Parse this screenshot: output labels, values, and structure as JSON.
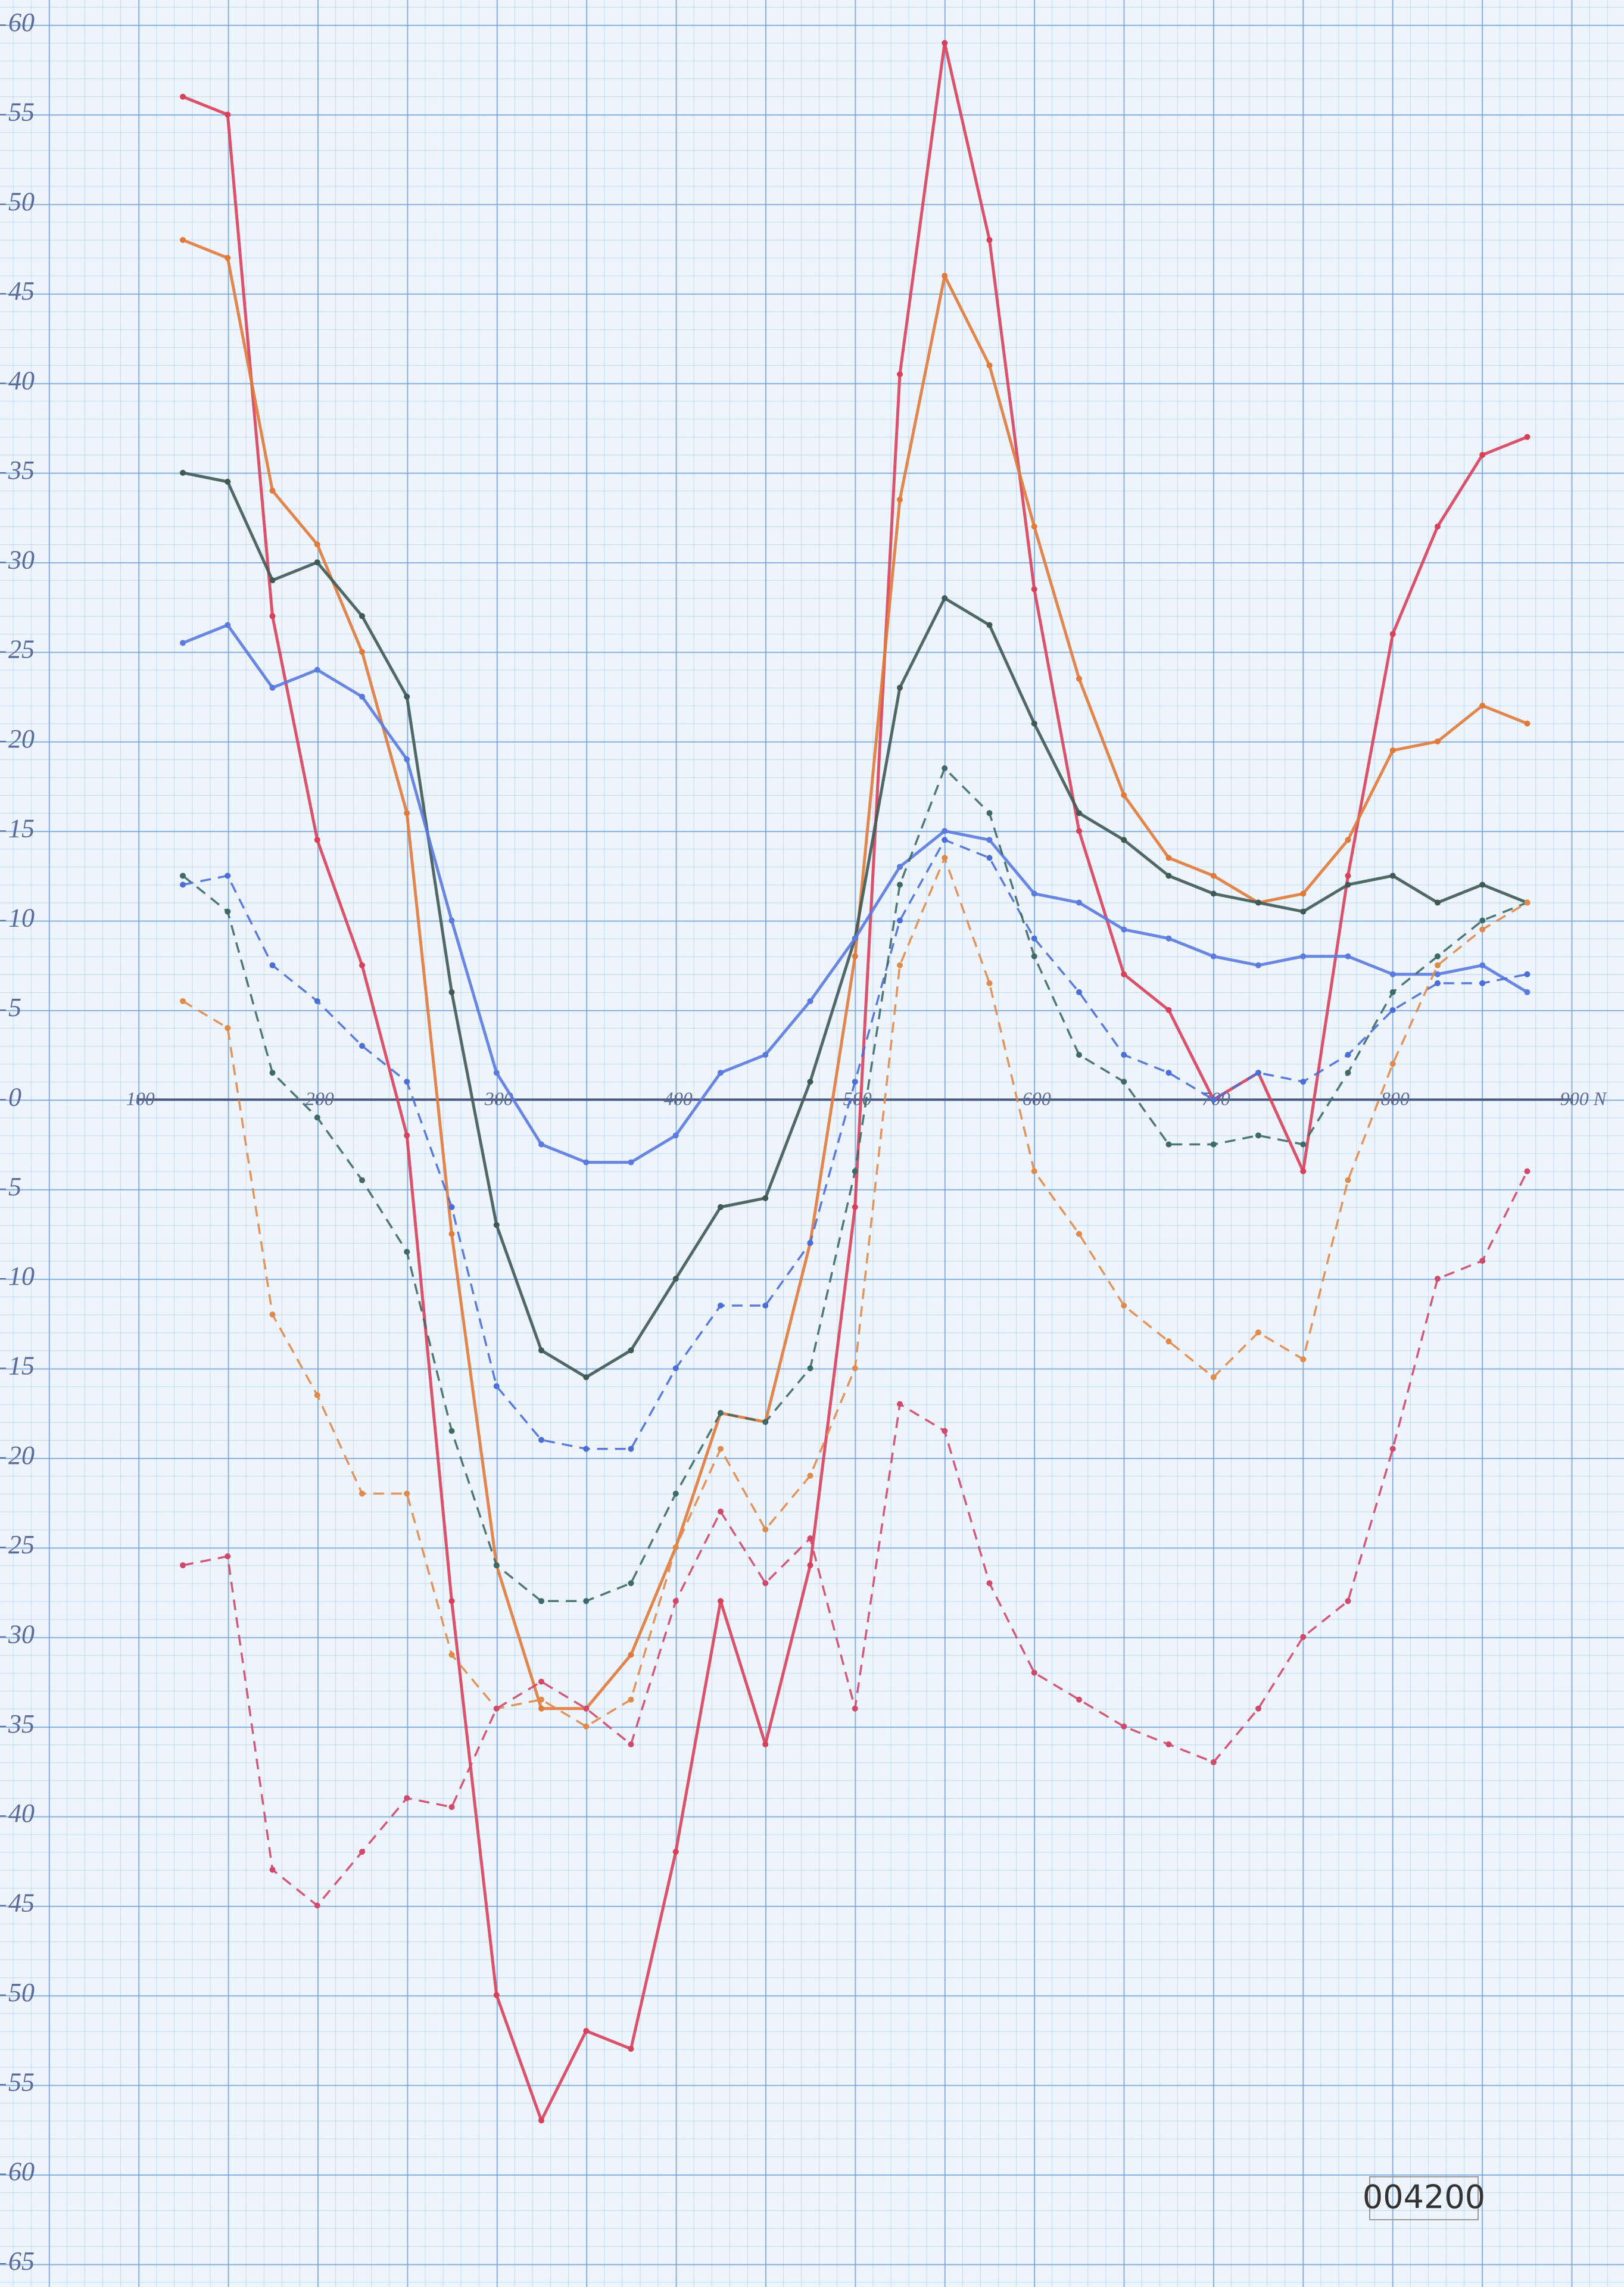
{
  "chart_data": {
    "type": "line",
    "x": [
      125,
      150,
      175,
      200,
      225,
      250,
      275,
      300,
      325,
      350,
      375,
      400,
      425,
      450,
      475,
      500,
      525,
      550,
      575,
      600,
      625,
      650,
      675,
      700,
      725,
      750,
      775,
      800,
      825,
      850,
      875
    ],
    "xlim": [
      23,
      929
    ],
    "ylim": [
      -66.3,
      61.4
    ],
    "xticks": [
      100,
      200,
      300,
      400,
      500,
      600,
      700,
      800,
      {
        "value": 900,
        "label": "900 N"
      }
    ],
    "yticks": [
      60,
      55,
      50,
      45,
      40,
      35,
      30,
      25,
      20,
      15,
      10,
      5,
      0,
      {
        "value": -5,
        "label": "5"
      },
      {
        "value": -10,
        "label": "10"
      },
      {
        "value": -15,
        "label": "15"
      },
      {
        "value": -20,
        "label": "20"
      },
      {
        "value": -25,
        "label": "25"
      },
      {
        "value": -30,
        "label": "30"
      },
      {
        "value": -35,
        "label": "35"
      },
      {
        "value": -40,
        "label": "40"
      },
      {
        "value": -45,
        "label": "45"
      },
      {
        "value": -50,
        "label": "50"
      },
      {
        "value": -55,
        "label": "55"
      },
      {
        "value": -60,
        "label": "60"
      },
      {
        "value": -65,
        "label": "65"
      }
    ],
    "annotation": "004200",
    "series": [
      {
        "color": "#d8405a",
        "dashed": false,
        "values": [
          56,
          55,
          27,
          14.5,
          7.5,
          -2,
          -28,
          -50,
          -57,
          -52,
          -53,
          -42,
          -28,
          -36,
          -26,
          -6,
          40.5,
          59,
          48,
          28.5,
          15,
          7,
          5,
          0,
          1.5,
          -4,
          12.5,
          26,
          32,
          36,
          37
        ]
      },
      {
        "color": "#e07a3a",
        "dashed": false,
        "values": [
          48,
          47,
          34,
          31,
          25,
          16,
          -7.5,
          -26,
          -34,
          -34,
          -31,
          -25,
          -17.5,
          -18,
          -8,
          8,
          33.5,
          46,
          41,
          32,
          23.5,
          17,
          13.5,
          12.5,
          11,
          11.5,
          14.5,
          19.5,
          20,
          22,
          21
        ]
      },
      {
        "color": "#3f5a55",
        "dashed": false,
        "values": [
          35,
          34.5,
          29,
          30,
          27,
          22.5,
          6,
          -7,
          -14,
          -15.5,
          -14,
          -10,
          -6,
          -5.5,
          1,
          9,
          23,
          28,
          26.5,
          21,
          16,
          14.5,
          12.5,
          11.5,
          11,
          10.5,
          12,
          12.5,
          11,
          12,
          11
        ]
      },
      {
        "color": "#5a7ae0",
        "dashed": false,
        "values": [
          25.5,
          26.5,
          23,
          24,
          22.5,
          19,
          10,
          1.5,
          -2.5,
          -3.5,
          -3.5,
          -2,
          1.5,
          2.5,
          5.5,
          9,
          13,
          15,
          14.5,
          11.5,
          11,
          9.5,
          9,
          8,
          7.5,
          8,
          8,
          7,
          7,
          7.5,
          6
        ]
      },
      {
        "color": "#4a6ed8",
        "dashed": true,
        "values": [
          12,
          12.5,
          7.5,
          5.5,
          3,
          1,
          -6,
          -16,
          -19,
          -19.5,
          -19.5,
          -15,
          -11.5,
          -11.5,
          -8,
          1,
          10,
          14.5,
          13.5,
          9,
          6,
          2.5,
          1.5,
          0,
          1.5,
          1,
          2.5,
          5,
          6.5,
          6.5,
          7
        ]
      },
      {
        "color": "#3d6a66",
        "dashed": true,
        "values": [
          12.5,
          10.5,
          1.5,
          -1,
          -4.5,
          -8.5,
          -18.5,
          -26,
          -28,
          -28,
          -27,
          -22,
          -17.5,
          -18,
          -15,
          -4,
          12,
          18.5,
          16,
          8,
          2.5,
          1,
          -2.5,
          -2.5,
          -2,
          -2.5,
          1.5,
          6,
          8,
          10,
          11
        ]
      },
      {
        "color": "#e08a4a",
        "dashed": true,
        "values": [
          5.5,
          4,
          -12,
          -16.5,
          -22,
          -22,
          -31,
          -34,
          -33.5,
          -35,
          -33.5,
          -25,
          -19.5,
          -24,
          -21,
          -15,
          7.5,
          13.5,
          6.5,
          -4,
          -7.5,
          -11.5,
          -13.5,
          -15.5,
          -13,
          -14.5,
          -4.5,
          2,
          7.5,
          9.5,
          11
        ]
      },
      {
        "color": "#d0486a",
        "dashed": true,
        "values": [
          -26,
          -25.5,
          -43,
          -45,
          -42,
          -39,
          -39.5,
          -34,
          -32.5,
          -34,
          -36,
          -28,
          -23,
          -27,
          -24.5,
          -34,
          -17,
          -18.5,
          -27,
          -32,
          -33.5,
          -35,
          -36,
          -37,
          -34,
          -30,
          -28,
          -19.5,
          -10,
          -9,
          -4
        ]
      }
    ]
  }
}
